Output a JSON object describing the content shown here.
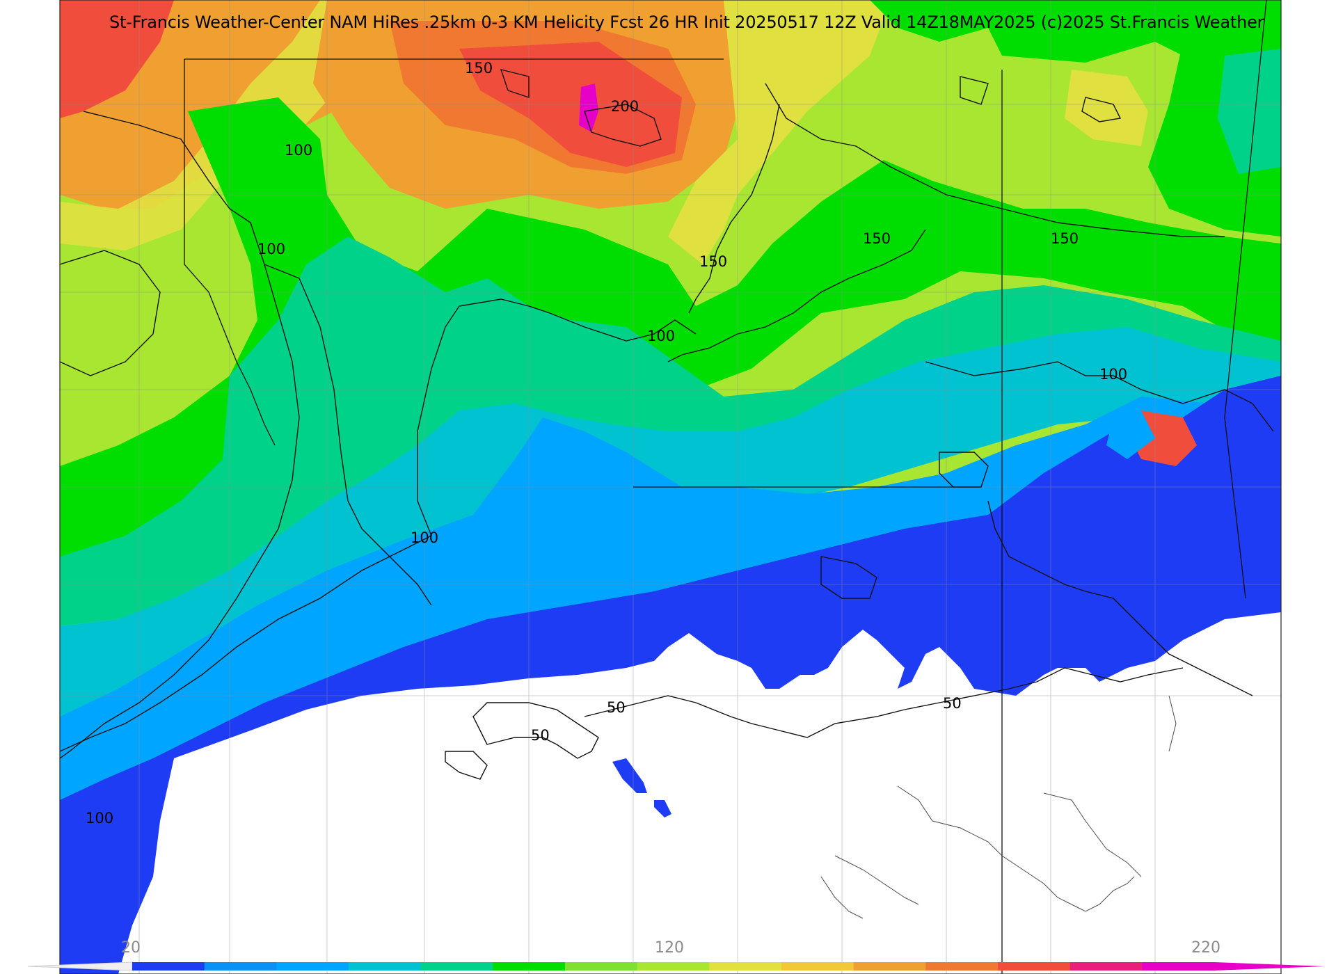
{
  "title": "St-Francis Weather-Center NAM HiRes .25km 0-3 KM Helicity Fcst 26 HR Init 20250517 12Z  Valid 14Z18MAY2025    (c)2025 St.Francis Weather",
  "colorbar": {
    "ticks": [
      "20",
      "120",
      "220"
    ],
    "min": 20,
    "max": 220,
    "step": 10,
    "colors": [
      "#1f3cf5",
      "#0a91f5",
      "#00a5ff",
      "#00c2d0",
      "#00d28a",
      "#00dd00",
      "#7fe030",
      "#a9e632",
      "#e0e040",
      "#f0c838",
      "#f0a030",
      "#f07830",
      "#f04d3c",
      "#e8207a",
      "#e600c8"
    ],
    "extend": "both"
  },
  "contour_labels": [
    "200",
    "150",
    "100",
    "150",
    "150",
    "150",
    "100",
    "100",
    "100",
    "50",
    "50",
    "50",
    "100"
  ],
  "colors": {
    "land_fill_blue": "#1f3cf5",
    "water": "#ffffff",
    "contour": "#111111",
    "county_lines": "#8f8f8f"
  }
}
